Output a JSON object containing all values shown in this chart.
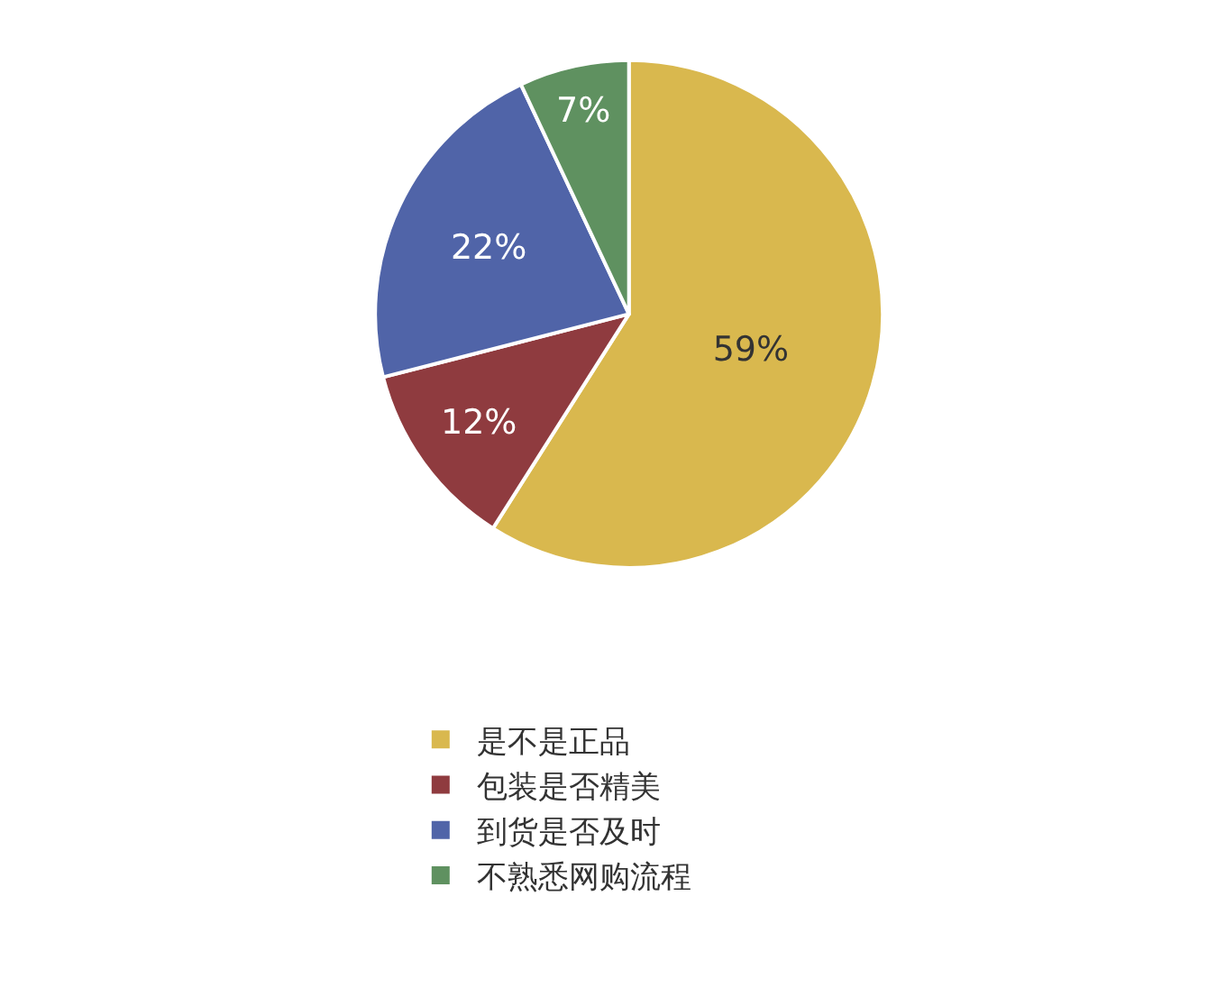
{
  "chart_data": {
    "type": "pie",
    "categories": [
      "是不是正品",
      "包装是否精美",
      "到货是否及时",
      "不熟悉网购流程"
    ],
    "values": [
      59,
      12,
      22,
      7
    ],
    "value_labels": [
      "59%",
      "12%",
      "22%",
      "7%"
    ],
    "colors": [
      "#d9b84e",
      "#8f3b3f",
      "#5064a8",
      "#5f9160"
    ],
    "legend": "bottom"
  }
}
